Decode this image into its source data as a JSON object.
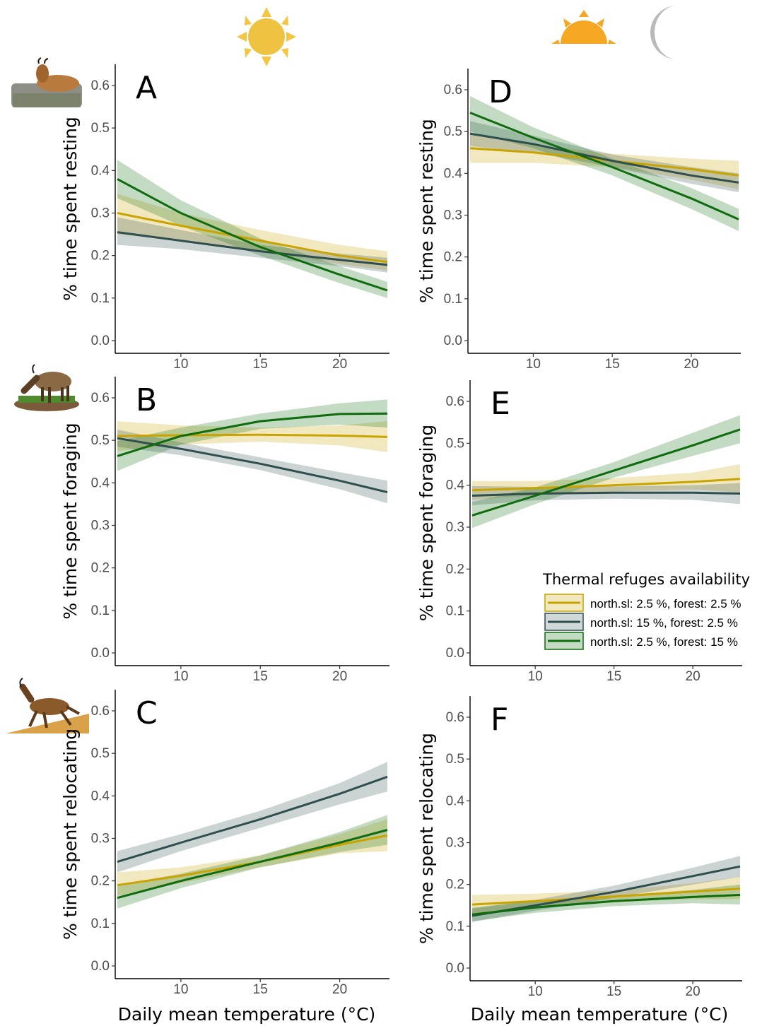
{
  "figure": {
    "x_axis_label": "Daily mean temperature (°C)",
    "header_icons": [
      "sun-icon",
      "sunset-icon",
      "moon-icon"
    ],
    "row_icons": [
      "chamois-resting-icon",
      "chamois-foraging-icon",
      "chamois-relocating-icon"
    ]
  },
  "legend": {
    "title": "Thermal refuges availability",
    "entries": [
      {
        "label": "north.sl: 2.5 %, forest: 2.5 %",
        "color": "#c9a400"
      },
      {
        "label": "north.sl: 15 %, forest: 2.5 %",
        "color": "#2f4f4f"
      },
      {
        "label": "north.sl: 2.5 %, forest: 15 %",
        "color": "#0e6b0e"
      }
    ]
  },
  "chart_data": [
    {
      "panel": "A",
      "type": "line",
      "ylabel": "% time spent resting",
      "xlim": [
        6,
        23
      ],
      "xticks": [
        10,
        15,
        20
      ],
      "ylim": [
        0,
        0.6
      ],
      "yticks": [
        "0.0",
        "0.1",
        "0.2",
        "0.3",
        "0.4",
        "0.5",
        "0.6"
      ],
      "x": [
        6,
        10,
        15,
        20,
        23
      ],
      "series": [
        {
          "color": "#c9a400",
          "values": [
            0.3,
            0.27,
            0.235,
            0.2,
            0.185
          ],
          "lower": [
            0.25,
            0.235,
            0.21,
            0.18,
            0.165
          ],
          "upper": [
            0.345,
            0.3,
            0.26,
            0.225,
            0.21
          ]
        },
        {
          "color": "#2f4f4f",
          "values": [
            0.255,
            0.235,
            0.21,
            0.19,
            0.178
          ],
          "lower": [
            0.225,
            0.215,
            0.195,
            0.175,
            0.16
          ],
          "upper": [
            0.29,
            0.26,
            0.225,
            0.205,
            0.195
          ]
        },
        {
          "color": "#0e6b0e",
          "values": [
            0.38,
            0.3,
            0.22,
            0.155,
            0.118
          ],
          "lower": [
            0.335,
            0.27,
            0.2,
            0.135,
            0.1
          ],
          "upper": [
            0.425,
            0.33,
            0.24,
            0.175,
            0.138
          ]
        }
      ]
    },
    {
      "panel": "B",
      "type": "line",
      "ylabel": "% time spent foraging",
      "xlim": [
        6,
        23
      ],
      "xticks": [
        10,
        15,
        20
      ],
      "ylim": [
        0,
        0.6
      ],
      "yticks": [
        "0.0",
        "0.1",
        "0.2",
        "0.3",
        "0.4",
        "0.5",
        "0.6"
      ],
      "x": [
        6,
        10,
        15,
        20,
        23
      ],
      "series": [
        {
          "color": "#c9a400",
          "values": [
            0.51,
            0.512,
            0.513,
            0.511,
            0.508
          ],
          "lower": [
            0.475,
            0.49,
            0.497,
            0.488,
            0.472
          ],
          "upper": [
            0.545,
            0.535,
            0.53,
            0.535,
            0.545
          ]
        },
        {
          "color": "#2f4f4f",
          "values": [
            0.505,
            0.48,
            0.445,
            0.405,
            0.378
          ],
          "lower": [
            0.485,
            0.465,
            0.43,
            0.385,
            0.352
          ],
          "upper": [
            0.525,
            0.495,
            0.46,
            0.425,
            0.405
          ]
        },
        {
          "color": "#0e6b0e",
          "values": [
            0.463,
            0.51,
            0.545,
            0.562,
            0.563
          ],
          "lower": [
            0.428,
            0.49,
            0.527,
            0.537,
            0.53
          ],
          "upper": [
            0.498,
            0.53,
            0.563,
            0.587,
            0.596
          ]
        }
      ]
    },
    {
      "panel": "C",
      "type": "line",
      "ylabel": "% time spent relocating",
      "xlim": [
        6,
        23
      ],
      "xticks": [
        10,
        15,
        20
      ],
      "ylim": [
        0,
        0.6
      ],
      "yticks": [
        "0.0",
        "0.1",
        "0.2",
        "0.3",
        "0.4",
        "0.5",
        "0.6"
      ],
      "x": [
        6,
        10,
        15,
        20,
        23
      ],
      "series": [
        {
          "color": "#c9a400",
          "values": [
            0.19,
            0.212,
            0.245,
            0.285,
            0.307
          ],
          "lower": [
            0.165,
            0.195,
            0.232,
            0.265,
            0.27
          ],
          "upper": [
            0.22,
            0.232,
            0.26,
            0.31,
            0.345
          ]
        },
        {
          "color": "#2f4f4f",
          "values": [
            0.245,
            0.29,
            0.345,
            0.405,
            0.445
          ],
          "lower": [
            0.22,
            0.27,
            0.325,
            0.38,
            0.41
          ],
          "upper": [
            0.27,
            0.31,
            0.365,
            0.43,
            0.48
          ]
        },
        {
          "color": "#0e6b0e",
          "values": [
            0.16,
            0.2,
            0.245,
            0.29,
            0.32
          ],
          "lower": [
            0.135,
            0.183,
            0.232,
            0.268,
            0.285
          ],
          "upper": [
            0.19,
            0.217,
            0.26,
            0.315,
            0.355
          ]
        }
      ]
    },
    {
      "panel": "D",
      "type": "line",
      "ylabel": "% time spent resting",
      "xlim": [
        6,
        23
      ],
      "xticks": [
        10,
        15,
        20
      ],
      "ylim": [
        0,
        0.6
      ],
      "yticks": [
        "0.0",
        "0.1",
        "0.2",
        "0.3",
        "0.4",
        "0.5",
        "0.6"
      ],
      "x": [
        6,
        10,
        15,
        20,
        23
      ],
      "series": [
        {
          "color": "#c9a400",
          "values": [
            0.46,
            0.45,
            0.43,
            0.41,
            0.395
          ],
          "lower": [
            0.425,
            0.425,
            0.415,
            0.385,
            0.362
          ],
          "upper": [
            0.495,
            0.468,
            0.447,
            0.435,
            0.43
          ]
        },
        {
          "color": "#2f4f4f",
          "values": [
            0.495,
            0.47,
            0.43,
            0.395,
            0.378
          ],
          "lower": [
            0.465,
            0.45,
            0.415,
            0.375,
            0.355
          ],
          "upper": [
            0.525,
            0.49,
            0.445,
            0.415,
            0.4
          ]
        },
        {
          "color": "#0e6b0e",
          "values": [
            0.545,
            0.485,
            0.415,
            0.34,
            0.29
          ],
          "lower": [
            0.5,
            0.46,
            0.395,
            0.315,
            0.262
          ],
          "upper": [
            0.585,
            0.51,
            0.435,
            0.365,
            0.315
          ]
        }
      ]
    },
    {
      "panel": "E",
      "type": "line",
      "ylabel": "% time spent foraging",
      "xlim": [
        6,
        23
      ],
      "xticks": [
        10,
        15,
        20
      ],
      "ylim": [
        0,
        0.6
      ],
      "yticks": [
        "0.0",
        "0.1",
        "0.2",
        "0.3",
        "0.4",
        "0.5",
        "0.6"
      ],
      "x": [
        6,
        10,
        15,
        20,
        23
      ],
      "series": [
        {
          "color": "#c9a400",
          "values": [
            0.388,
            0.393,
            0.4,
            0.408,
            0.415
          ],
          "lower": [
            0.365,
            0.376,
            0.385,
            0.39,
            0.383
          ],
          "upper": [
            0.41,
            0.41,
            0.417,
            0.43,
            0.45
          ]
        },
        {
          "color": "#2f4f4f",
          "values": [
            0.375,
            0.38,
            0.382,
            0.382,
            0.38
          ],
          "lower": [
            0.352,
            0.364,
            0.368,
            0.365,
            0.355
          ],
          "upper": [
            0.398,
            0.396,
            0.397,
            0.4,
            0.405
          ]
        },
        {
          "color": "#0e6b0e",
          "values": [
            0.328,
            0.375,
            0.435,
            0.495,
            0.533
          ],
          "lower": [
            0.298,
            0.355,
            0.418,
            0.47,
            0.5
          ],
          "upper": [
            0.36,
            0.395,
            0.455,
            0.525,
            0.567
          ]
        }
      ]
    },
    {
      "panel": "F",
      "type": "line",
      "ylabel": "% time spent relocating",
      "xlim": [
        6,
        23
      ],
      "xticks": [
        10,
        15,
        20
      ],
      "ylim": [
        0,
        0.6
      ],
      "yticks": [
        "0.0",
        "0.1",
        "0.2",
        "0.3",
        "0.4",
        "0.5",
        "0.6"
      ],
      "x": [
        6,
        10,
        15,
        20,
        23
      ],
      "series": [
        {
          "color": "#c9a400",
          "values": [
            0.152,
            0.16,
            0.171,
            0.183,
            0.19
          ],
          "lower": [
            0.13,
            0.143,
            0.158,
            0.165,
            0.165
          ],
          "upper": [
            0.175,
            0.178,
            0.185,
            0.203,
            0.218
          ]
        },
        {
          "color": "#2f4f4f",
          "values": [
            0.125,
            0.15,
            0.182,
            0.22,
            0.243
          ],
          "lower": [
            0.11,
            0.137,
            0.168,
            0.2,
            0.218
          ],
          "upper": [
            0.142,
            0.163,
            0.197,
            0.24,
            0.268
          ]
        },
        {
          "color": "#0e6b0e",
          "values": [
            0.128,
            0.145,
            0.16,
            0.17,
            0.175
          ],
          "lower": [
            0.112,
            0.132,
            0.148,
            0.155,
            0.152
          ],
          "upper": [
            0.145,
            0.16,
            0.173,
            0.187,
            0.2
          ]
        }
      ]
    }
  ]
}
